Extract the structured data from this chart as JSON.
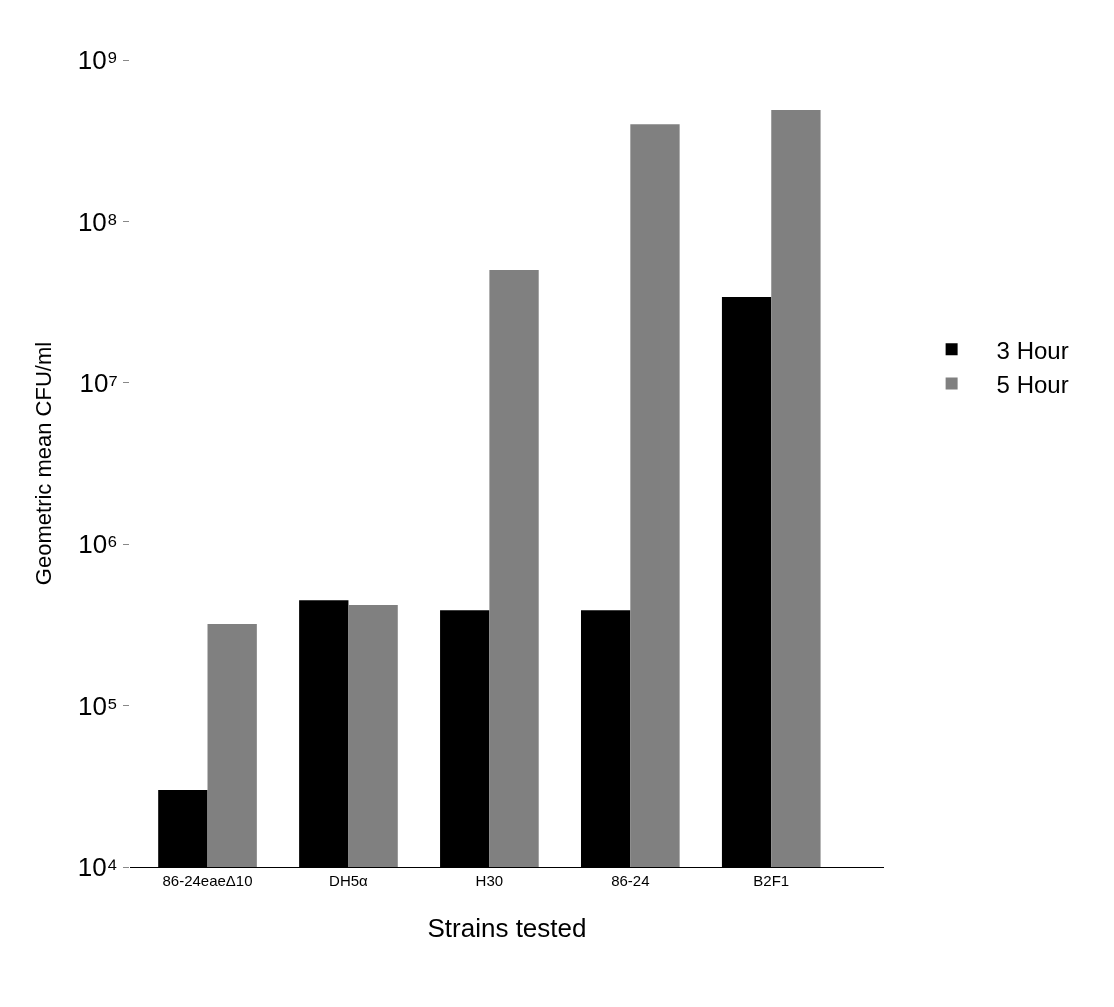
{
  "chart_data": {
    "type": "bar",
    "xlabel": "Strains tested",
    "ylabel": "Geometric mean CFU/ml",
    "categories": [
      "86-24eaeΔ10",
      "DH5α",
      "H30",
      "86-24",
      "B2F1"
    ],
    "series": [
      {
        "name": "3 Hour",
        "color": "#000000",
        "values": [
          30000,
          450000,
          390000,
          390000,
          34000000
        ]
      },
      {
        "name": "5 Hour",
        "color": "#808080",
        "values": [
          320000,
          420000,
          50000000,
          400000000,
          490000000
        ]
      }
    ],
    "log": "y",
    "ylim": [
      10000,
      1000000000
    ],
    "yticks": [
      {
        "value": 10000,
        "label": "10⁴"
      },
      {
        "value": 100000,
        "label": "10⁵"
      },
      {
        "value": 1000000,
        "label": "10⁶"
      },
      {
        "value": 10000000,
        "label": "10⁷"
      },
      {
        "value": 100000000,
        "label": "10⁸"
      },
      {
        "value": 1000000000,
        "label": "10⁹"
      }
    ],
    "legend": "right"
  }
}
